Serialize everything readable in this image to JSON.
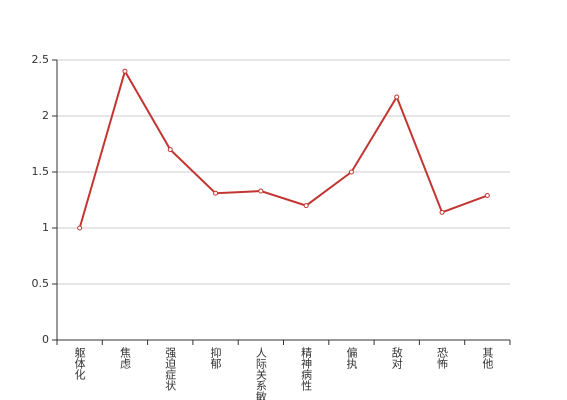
{
  "chart_data": {
    "type": "line",
    "categories": [
      "躯体化",
      "焦虑",
      "强迫症状",
      "抑郁",
      "人际关系敏感",
      "精神病性",
      "偏执",
      "敌对",
      "恐怖",
      "其他"
    ],
    "values": [
      1.0,
      2.4,
      1.7,
      1.31,
      1.33,
      1.2,
      1.5,
      2.17,
      1.14,
      1.29
    ],
    "color": "#c23531",
    "ylim": [
      0,
      2.5
    ],
    "yticks": [
      0,
      0.5,
      1,
      1.5,
      2,
      2.5
    ],
    "grid": true
  }
}
